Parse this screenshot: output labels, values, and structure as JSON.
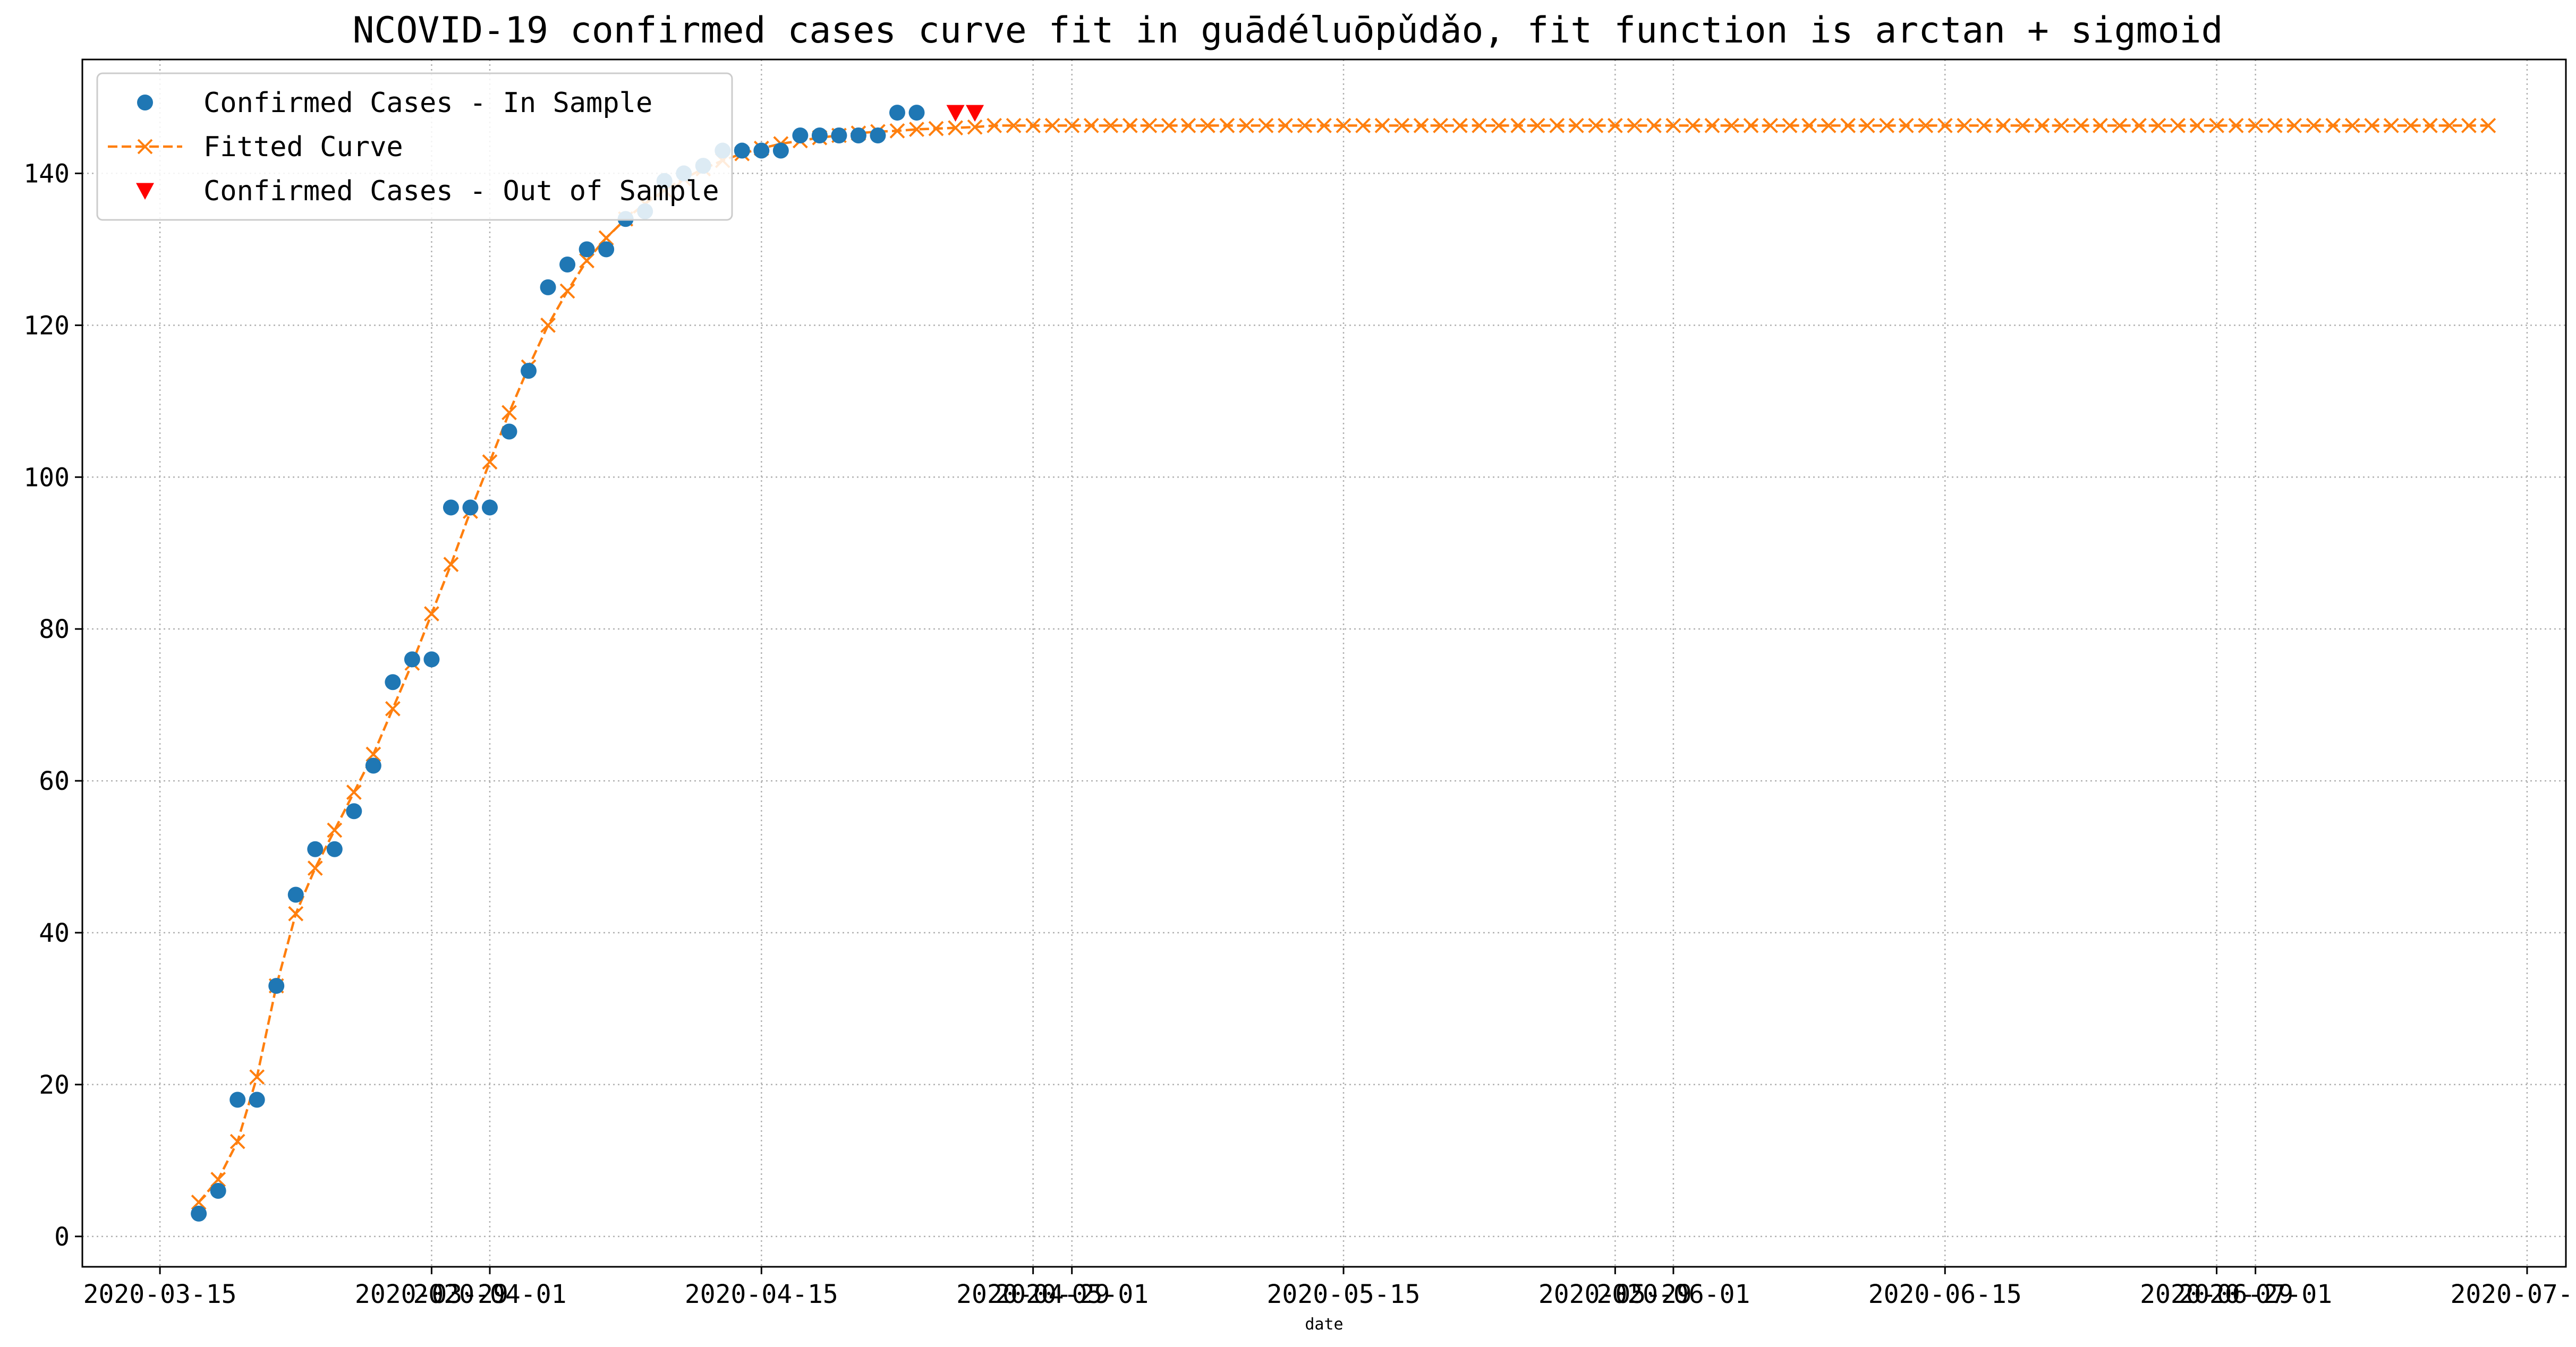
{
  "chart_data": {
    "type": "line",
    "title": "NCOVID-19 confirmed cases curve fit in guādéluōpǔdǎo, fit function is arctan + sigmoid",
    "xlabel": "date",
    "ylabel": "",
    "x_is_date": true,
    "xlim": [
      "2020-03-11",
      "2020-07-17"
    ],
    "ylim": [
      -4,
      155
    ],
    "yticks": [
      0,
      20,
      40,
      60,
      80,
      100,
      120,
      140
    ],
    "xticks": [
      {
        "date": "2020-03-15",
        "label": "2020-03-15"
      },
      {
        "date": "2020-03-29",
        "label": "2020-03-29"
      },
      {
        "date": "2020-04-01",
        "label": "2020-04-01"
      },
      {
        "date": "2020-04-15",
        "label": "2020-04-15"
      },
      {
        "date": "2020-04-29",
        "label": "2020-04-29"
      },
      {
        "date": "2020-05-01",
        "label": "2020-05-01"
      },
      {
        "date": "2020-05-15",
        "label": "2020-05-15"
      },
      {
        "date": "2020-05-29",
        "label": "2020-05-29"
      },
      {
        "date": "2020-06-01",
        "label": "2020-06-01"
      },
      {
        "date": "2020-06-15",
        "label": "2020-06-15"
      },
      {
        "date": "2020-06-29",
        "label": "2020-06-29"
      },
      {
        "date": "2020-07-01",
        "label": "2020-07-01"
      },
      {
        "date": "2020-07-15",
        "label": "2020-07-15"
      }
    ],
    "grid": true,
    "legend_position": "top-left",
    "series": [
      {
        "name": "Confirmed Cases - In Sample",
        "marker": "circle",
        "color": "#1f77b4",
        "start_date": "2020-03-17",
        "values": [
          3,
          6,
          18,
          18,
          33,
          45,
          51,
          51,
          56,
          62,
          73,
          76,
          76,
          96,
          96,
          96,
          106,
          114,
          125,
          128,
          130,
          130,
          134,
          135,
          139,
          140,
          141,
          143,
          143,
          143,
          143,
          145,
          145,
          145,
          145,
          145,
          148,
          148
        ]
      },
      {
        "name": "Fitted Curve",
        "marker": "x",
        "line": "dashed",
        "color": "#ff7f0e",
        "start_date": "2020-03-17",
        "values": [
          4.5,
          7.5,
          12.5,
          21,
          33,
          42.5,
          48.5,
          53.5,
          58.5,
          63.5,
          69.5,
          75.5,
          82,
          88.5,
          95.5,
          102,
          108.5,
          114.5,
          120,
          124.5,
          128.5,
          131.5,
          134,
          136,
          137.8,
          139.3,
          140.6,
          141.7,
          142.6,
          143.3,
          143.9,
          144.3,
          144.7,
          145,
          145.3,
          145.5,
          145.6,
          145.8,
          145.9,
          146,
          146.1
        ],
        "plateau_value": 146.3,
        "end_date": "2020-07-13"
      },
      {
        "name": "Confirmed Cases - Out of Sample",
        "marker": "triangle-down",
        "color": "#ff0000",
        "points": [
          {
            "date": "2020-04-25",
            "value": 148
          },
          {
            "date": "2020-04-26",
            "value": 148
          }
        ]
      }
    ]
  }
}
